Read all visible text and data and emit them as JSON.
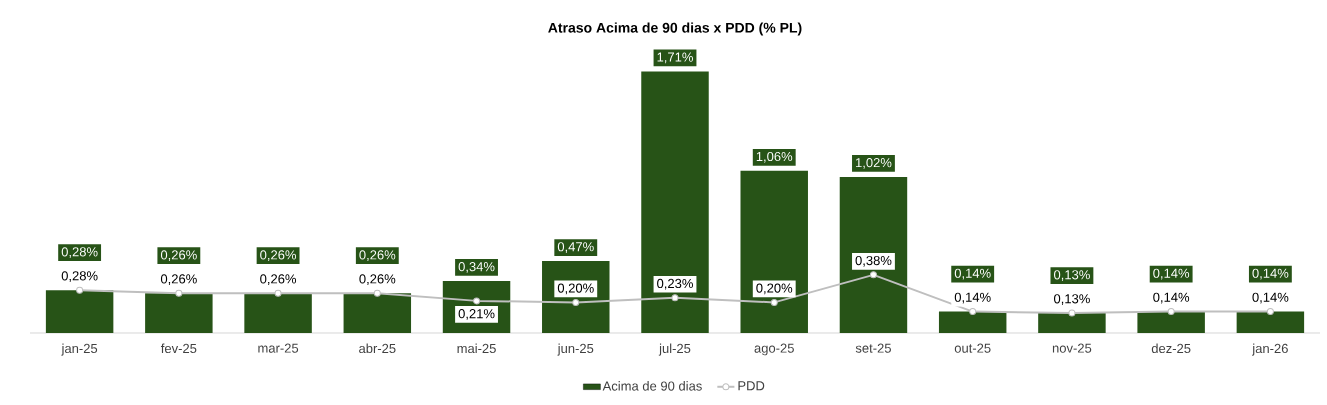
{
  "chart_data": {
    "type": "bar",
    "title": "Atraso Acima de 90 dias x PDD (% PL)",
    "categories": [
      "jan-25",
      "fev-25",
      "mar-25",
      "abr-25",
      "mai-25",
      "jun-25",
      "jul-25",
      "ago-25",
      "set-25",
      "out-25",
      "nov-25",
      "dez-25",
      "jan-26"
    ],
    "ylim": [
      0,
      1.85
    ],
    "legend": "bottom",
    "series": [
      {
        "name": "Acima de 90 dias",
        "color": "#275317",
        "values": [
          0.28,
          0.26,
          0.26,
          0.26,
          0.34,
          0.47,
          1.71,
          1.06,
          1.02,
          0.14,
          0.13,
          0.14,
          0.14
        ],
        "value_labels": [
          "0,28%",
          "0,26%",
          "0,26%",
          "0,26%",
          "0,34%",
          "0,47%",
          "1,71%",
          "1,06%",
          "1,02%",
          "0,14%",
          "0,13%",
          "0,14%",
          "0,14%"
        ]
      },
      {
        "name": "PDD",
        "type": "line",
        "color": "#bfbfbf",
        "marker": "circle",
        "values": [
          0.28,
          0.26,
          0.26,
          0.26,
          0.21,
          0.2,
          0.23,
          0.2,
          0.38,
          0.14,
          0.13,
          0.14,
          0.14
        ],
        "value_labels": [
          "0,28%",
          "0,26%",
          "0,26%",
          "0,26%",
          "0,21%",
          "0,20%",
          "0,23%",
          "0,20%",
          "0,38%",
          "0,14%",
          "0,13%",
          "0,14%",
          "0,14%"
        ]
      }
    ]
  }
}
